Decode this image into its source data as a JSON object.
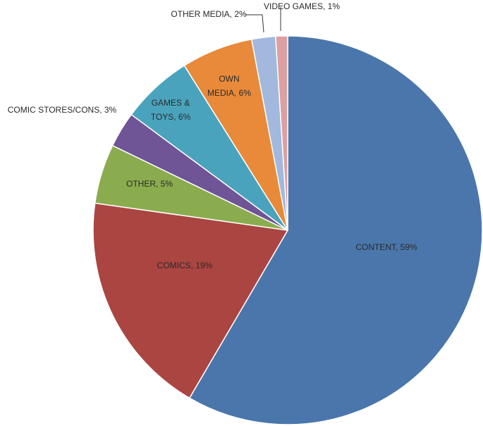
{
  "chart_data": {
    "type": "pie",
    "values": [
      59,
      19,
      5,
      3,
      6,
      6,
      2,
      1
    ],
    "value_labels": [
      "CONTENT, 59%",
      "COMICS, 19%",
      "OTHER, 5%",
      "COMIC STORES/CONS, 3%",
      "GAMES &\nTOYS, 6%",
      "OWN\nMEDIA, 6%",
      "OTHER MEDIA, 2%",
      "VIDEO GAMES, 1%"
    ],
    "colors": [
      "#4a76ab",
      "#ab4542",
      "#8aac4e",
      "#6f5496",
      "#4aa3bd",
      "#e88a3a",
      "#a2b8dd",
      "#dca0a0"
    ]
  }
}
